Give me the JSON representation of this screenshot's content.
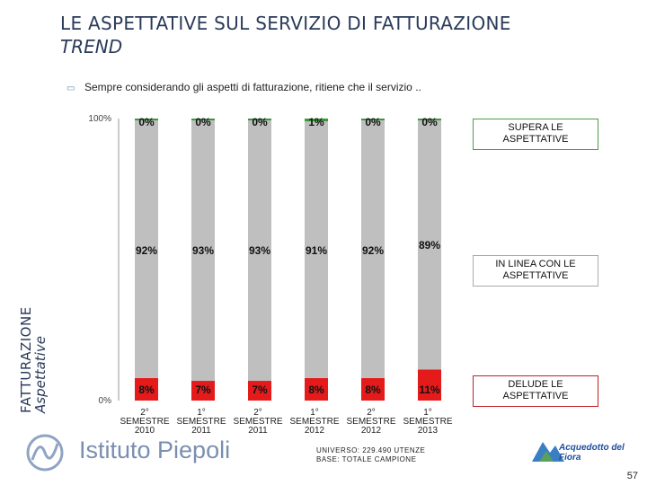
{
  "title": "LE ASPETTATIVE SUL SERVIZIO DI FATTURAZIONE",
  "subtitle": "TREND",
  "question": "Sempre considerando gli aspetti di fatturazione, ritiene che il servizio ..",
  "side_label": {
    "main": "FATTURAZIONE",
    "sub": "Aspettative"
  },
  "colors": {
    "supera": "#3a9a3a",
    "in_linea": "#bfbfbf",
    "delude": "#e51b1b"
  },
  "chart_data": {
    "type": "bar",
    "stacked": true,
    "categories": [
      [
        "2°",
        "SEMESTRE",
        "2010"
      ],
      [
        "1°",
        "SEMESTRE",
        "2011"
      ],
      [
        "2°",
        "SEMESTRE",
        "2011"
      ],
      [
        "1°",
        "SEMESTRE",
        "2012"
      ],
      [
        "2°",
        "SEMESTRE",
        "2012"
      ],
      [
        "1°",
        "SEMESTRE",
        "2013"
      ]
    ],
    "series": [
      {
        "name": "DELUDE LE ASPETTATIVE",
        "values": [
          8,
          7,
          7,
          8,
          8,
          11
        ],
        "labels": [
          "8%",
          "7%",
          "7%",
          "8%",
          "8%",
          "11%"
        ]
      },
      {
        "name": "IN LINEA CON LE ASPETTATIVE",
        "values": [
          92,
          93,
          93,
          91,
          92,
          89
        ],
        "labels": [
          "92%",
          "93%",
          "93%",
          "91%",
          "92%",
          "89%"
        ]
      },
      {
        "name": "SUPERA LE ASPETTATIVE",
        "values": [
          0,
          0,
          0,
          1,
          0,
          0
        ],
        "labels": [
          "0%",
          "0%",
          "0%",
          "1%",
          "0%",
          "0%"
        ]
      }
    ],
    "ylim": [
      0,
      100
    ],
    "yticks": [
      "0%",
      "100%"
    ]
  },
  "footer": {
    "line1": "UNIVERSO: 229.490 UTENZE",
    "line2": "BASE: TOTALE CAMPIONE"
  },
  "logo_text": "Istituto Piepoli",
  "partner_text": "Acquedotto del Fiora",
  "page_number": "57"
}
